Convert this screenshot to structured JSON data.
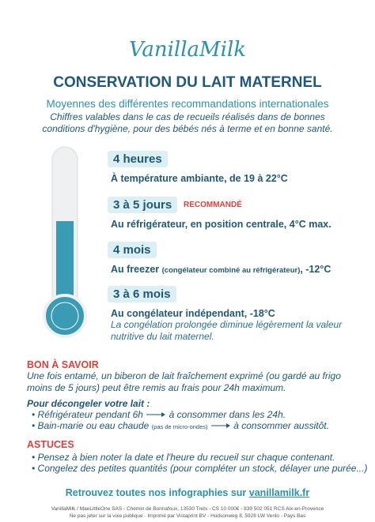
{
  "logo": "VanillaMilk",
  "header": {
    "title": "CONSERVATION DU LAIT MATERNEL",
    "subtitle": "Moyennes des différentes recommandations internationales",
    "intro": "Chiffres valables dans le cas de recueils réalisés dans de bonnes conditions d'hygiène, pour des bébés nés à terme et en bonne santé."
  },
  "items": [
    {
      "duration": "4 heures",
      "description": "À température ambiante, de 19 à 22°C"
    },
    {
      "duration": "3 à 5 jours",
      "badge": "RECOMMANDÉ",
      "description": "Au réfrigérateur, en position centrale, 4°C max."
    },
    {
      "duration": "4 mois",
      "description": "Au freezer",
      "detail": "(congélateur combiné au réfrigérateur)",
      "suffix": ", -12°C"
    },
    {
      "duration": "3 à 6 mois",
      "description": "Au congélateur indépendant, -18°C",
      "note": "La congélation prolongée diminue légèrement la valeur nutritive du lait maternel."
    }
  ],
  "good_to_know": {
    "heading": "BON À SAVOIR",
    "text": "Une fois entamé, un biberon de lait fraîchement exprimé (ou gardé au frigo moins de 5 jours) peut être remis au frais pour 24h maximum.",
    "thaw_heading": "Pour décongeler votre lait :",
    "thaw": [
      {
        "method": "Réfrigérateur pendant 6h",
        "result": "à consommer dans les 24h."
      },
      {
        "method": "Bain-marie ou eau chaude",
        "detail": "(pas de micro-ondes)",
        "result": "à consommer aussitôt."
      }
    ]
  },
  "tips": {
    "heading": "ASTUCES",
    "items": [
      "Pensez à bien noter la date et l'heure du recueil sur chaque contenant.",
      "Congelez des petites quantités (pour compléter un stock, délayer une purée...)"
    ]
  },
  "footer": {
    "text": "Retrouvez toutes nos infographies sur",
    "link": "vanillamilk.fr",
    "legal": [
      "VanillaMilk / MaeLittleOne SAS - Chemin de Bonnafoux, 13530 Trets - CS 10 000€ - 839 502 051 RCS Aix-en-Provence",
      "Ne pas jeter sur la voie publique · Imprimé par Vistaprint BV - Hudsonweg 8, 5928 LW Venlo - Pays Bas"
    ]
  }
}
